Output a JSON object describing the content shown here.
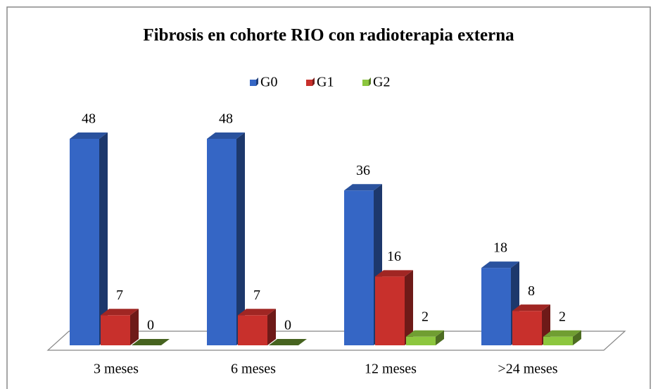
{
  "chart_data": {
    "type": "bar",
    "title": "Fibrosis en cohorte RIO con radioterapia externa",
    "categories": [
      "3 meses",
      "6 meses",
      "12 meses",
      ">24 meses"
    ],
    "series": [
      {
        "name": "G0",
        "color": "#3566c5",
        "values": [
          48,
          48,
          36,
          18
        ]
      },
      {
        "name": "G1",
        "color": "#c8302c",
        "values": [
          7,
          7,
          16,
          8
        ]
      },
      {
        "name": "G2",
        "color": "#8cc63e",
        "values": [
          0,
          0,
          2,
          2
        ]
      }
    ],
    "legend": "top"
  }
}
